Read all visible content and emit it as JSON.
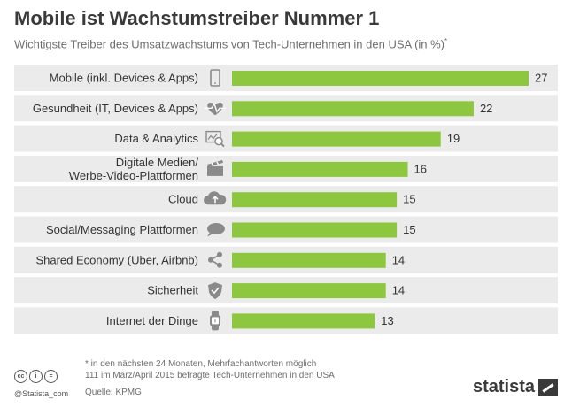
{
  "header": {
    "title": "Mobile ist Wachstumstreiber Nummer 1",
    "subtitle": "Wichtigste Treiber des Umsatzwachstums von Tech-Unternehmen in den USA (in %)",
    "subtitle_mark": "*"
  },
  "chart_data": {
    "type": "bar",
    "orientation": "horizontal",
    "categories": [
      [
        "Mobile (inkl. Devices & Apps)"
      ],
      [
        "Gesundheit (IT, Devices & Apps)"
      ],
      [
        "Data & Analytics"
      ],
      [
        "Digitale Medien/",
        "Werbe-Video-Plattformen"
      ],
      [
        "Cloud"
      ],
      [
        "Social/Messaging Plattformen"
      ],
      [
        "Shared Economy (Uber, Airbnb)"
      ],
      [
        "Sicherheit"
      ],
      [
        "Internet der Dinge"
      ]
    ],
    "icons": [
      "smartphone-icon",
      "heartbeat-icon",
      "analytics-icon",
      "clapperboard-icon",
      "cloud-upload-icon",
      "chat-bubble-icon",
      "share-icon",
      "shield-icon",
      "smartwatch-icon"
    ],
    "values": [
      27,
      22,
      19,
      16,
      15,
      15,
      14,
      14,
      13
    ],
    "xlim": [
      0,
      27
    ],
    "bar_color": "#8dc63f",
    "row_band_color": "#ebebeb",
    "data_labels": true,
    "grid": false,
    "legend": "none"
  },
  "footer": {
    "note_line1": "* in den nächsten 24 Monaten, Mehrfachantworten möglich",
    "note_line2": "111 im März/April 2015 befragte Tech-Unternehmen in den USA",
    "source": "Quelle: KPMG",
    "handle": "@Statista_com",
    "license_icons": [
      "cc",
      "i",
      "="
    ],
    "brand": "statista"
  }
}
